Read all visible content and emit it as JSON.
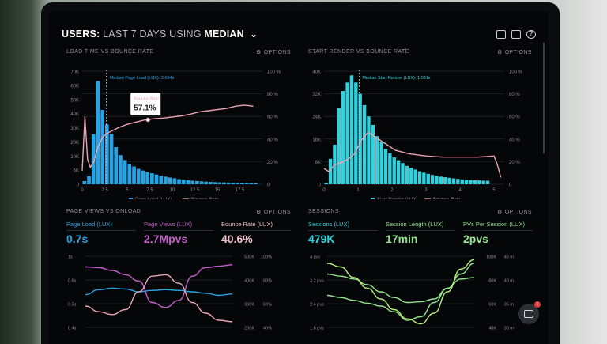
{
  "header": {
    "users_label": "USERS:",
    "range_label": "LAST 7 DAYS",
    "using_label": "USING",
    "stat_label": "MEDIAN",
    "chevron": "chevron-down-icon",
    "icons": [
      "monitor-icon",
      "image-icon",
      "help-icon"
    ]
  },
  "options_label": "OPTIONS",
  "panels": {
    "load_time": {
      "title": "LOAD TIME VS BOUNCE RATE",
      "median_label": "Median Page Load (LUX): 2.694s",
      "tooltip_label": "Bounce Rate",
      "tooltip_value": "57.1%",
      "legend": [
        "Page Load (LUX)",
        "Bounce Rate"
      ]
    },
    "start_render": {
      "title": "START RENDER VS BOUNCE RATE",
      "median_label": "Median Start Render (LUX): 1.031s",
      "legend": [
        "Start Render (LUX)",
        "Bounce Rate"
      ]
    },
    "page_views": {
      "title": "PAGE VIEWS VS ONLOAD",
      "metrics": [
        {
          "label": "Page Load (LUX)",
          "value": "0.7s"
        },
        {
          "label": "Page Views (LUX)",
          "value": "2.7Mpvs"
        },
        {
          "label": "Bounce Rate (LUX)",
          "value": "40.6%"
        }
      ]
    },
    "sessions": {
      "title": "SESSIONS",
      "metrics": [
        {
          "label": "Sessions (LUX)",
          "value": "479K"
        },
        {
          "label": "Session Length (LUX)",
          "value": "17min"
        },
        {
          "label": "PVs Per Session (LUX)",
          "value": "2pvs"
        }
      ]
    }
  },
  "colors": {
    "blue": "#27a4e6",
    "cyan": "#2fd2de",
    "pink": "#e8a4b6",
    "purple": "#c25fc8",
    "green": "#93e68e",
    "red": "#ef4d78",
    "grid": "#1c1f23",
    "axis": "#8b9096"
  },
  "chart_data": [
    {
      "type": "bar",
      "title": "LOAD TIME VS BOUNCE RATE",
      "x_ticks": [
        "0",
        "2.5",
        "5",
        "7.5",
        "10",
        "12.5",
        "15",
        "17.5"
      ],
      "y_left_ticks": [
        "0",
        "5K",
        "10K",
        "20K",
        "30K",
        "40K",
        "50K",
        "60K",
        "70K"
      ],
      "y_right_ticks": [
        "0",
        "20 %",
        "40 %",
        "60 %",
        "80 %",
        "100 %"
      ],
      "ylim_left": [
        0,
        70000
      ],
      "xlim": [
        0,
        20
      ],
      "median_x": 2.694,
      "series": [
        {
          "name": "Page Load (LUX)",
          "kind": "bar",
          "x_start": 0,
          "bin_width": 0.5,
          "values": [
            2000,
            5000,
            31000,
            64000,
            46000,
            37000,
            31000,
            23000,
            18000,
            15000,
            12500,
            11000,
            9500,
            8500,
            7500,
            6800,
            6000,
            5300,
            4700,
            4200,
            3700,
            3200,
            2800,
            2500,
            2200,
            2000,
            1800,
            1600,
            1450,
            1300,
            1200,
            1100,
            1000,
            920,
            850,
            780,
            720,
            660,
            600
          ]
        },
        {
          "name": "Bounce Rate",
          "kind": "line",
          "x": [
            0,
            0.3,
            0.6,
            0.9,
            1.3,
            1.8,
            2.3,
            3,
            4,
            5,
            6,
            7,
            8,
            9,
            10,
            11,
            12,
            13,
            14,
            15,
            16,
            17,
            18,
            19
          ],
          "values": [
            12,
            60,
            22,
            15,
            20,
            34,
            42,
            46,
            50,
            53,
            55,
            57,
            58,
            58.5,
            59.5,
            60.5,
            62,
            64,
            65,
            66,
            67,
            69,
            70,
            69
          ]
        }
      ]
    },
    {
      "type": "bar",
      "title": "START RENDER VS BOUNCE RATE",
      "x_ticks": [
        "0",
        "1",
        "2",
        "3",
        "4",
        "5"
      ],
      "y_left_ticks": [
        "0",
        "8K",
        "16K",
        "24K",
        "32K",
        "40K"
      ],
      "y_right_ticks": [
        "0",
        "20 %",
        "40 %",
        "60 %",
        "80 %",
        "100 %"
      ],
      "ylim_left": [
        0,
        40000
      ],
      "xlim": [
        0,
        5.3
      ],
      "median_x": 1.031,
      "series": [
        {
          "name": "Start Render (LUX)",
          "kind": "bar",
          "x_start": 0,
          "bin_width": 0.125,
          "values": [
            400,
            9000,
            14000,
            27000,
            33000,
            36000,
            38500,
            36000,
            32000,
            28000,
            24000,
            21000,
            17000,
            15000,
            12500,
            11000,
            9500,
            8500,
            7500,
            6500,
            5800,
            5200,
            4600,
            4100,
            3700,
            3300,
            3000,
            2700,
            2500,
            2300,
            2100,
            1900,
            1700,
            1600,
            1500,
            1400,
            1350,
            1300,
            1250
          ]
        },
        {
          "name": "Bounce Rate",
          "kind": "line",
          "x": [
            0,
            0.15,
            0.3,
            0.5,
            0.7,
            0.9,
            1.1,
            1.3,
            1.5,
            1.8,
            2.1,
            2.5,
            3,
            3.5,
            4,
            4.5,
            4.8,
            5,
            5.1,
            5.2
          ],
          "values": [
            14,
            11,
            17,
            19,
            22,
            27,
            39,
            46,
            42,
            36,
            30,
            27,
            25,
            24,
            24,
            24,
            24.5,
            25,
            17,
            6
          ]
        }
      ]
    },
    {
      "type": "line",
      "title": "PAGE VIEWS VS ONLOAD",
      "y_left_ticks": [
        "0.4s",
        "0.5s",
        "0.6s",
        "1s"
      ],
      "y_mid_ticks": [
        "200K",
        "300K",
        "400K",
        "500K"
      ],
      "y_right_ticks": [
        "40%",
        "60%",
        "80%",
        "100%"
      ],
      "series": [
        {
          "name": "Page Load (LUX)",
          "values": [
            0.46,
            0.53,
            0.55,
            0.54,
            0.5,
            0.52,
            0.53,
            0.52,
            0.5,
            0.48,
            0.45,
            0.47
          ]
        },
        {
          "name": "Page Views (LUX)",
          "values": [
            0.85,
            0.84,
            0.8,
            0.74,
            0.65,
            0.35,
            0.28,
            0.38,
            0.72,
            0.84,
            0.86,
            0.88
          ]
        },
        {
          "name": "Bounce Rate (LUX)",
          "values": [
            0.3,
            0.22,
            0.18,
            0.25,
            0.5,
            0.72,
            0.74,
            0.62,
            0.35,
            0.2,
            0.1,
            0.08
          ]
        }
      ]
    },
    {
      "type": "line",
      "title": "SESSIONS",
      "y_left_ticks": [
        "1.6 pvs",
        "2.4 pvs",
        "3.2 pvs",
        "4 pvs"
      ],
      "y_mid_ticks": [
        "40K",
        "60K",
        "80K",
        "100K"
      ],
      "y_right_ticks": [
        "30 m",
        "35 m",
        "40 m",
        "45 m"
      ],
      "series": [
        {
          "name": "Sessions (LUX)",
          "values": [
            0.75,
            0.72,
            0.68,
            0.6,
            0.5,
            0.42,
            0.35,
            0.36,
            0.4,
            0.55,
            0.75,
            0.9
          ]
        },
        {
          "name": "Session Length (LUX)",
          "values": [
            0.45,
            0.42,
            0.38,
            0.34,
            0.3,
            0.22,
            0.1,
            0.15,
            0.35,
            0.55,
            0.68,
            0.7
          ]
        },
        {
          "name": "PVs Per Session (LUX)",
          "values": [
            0.9,
            0.85,
            0.7,
            0.55,
            0.4,
            0.25,
            0.12,
            0.05,
            0.2,
            0.5,
            0.82,
            0.95
          ]
        }
      ]
    }
  ]
}
